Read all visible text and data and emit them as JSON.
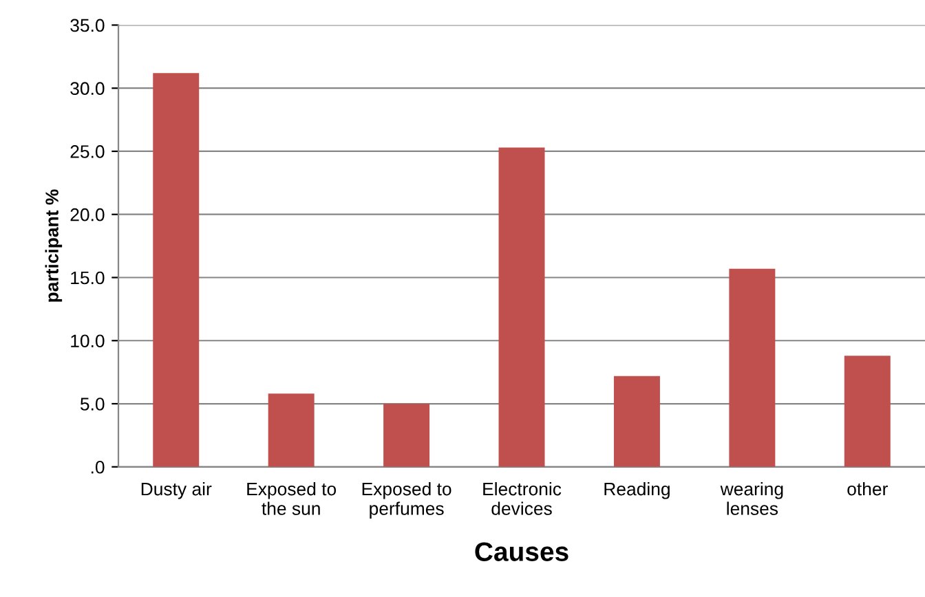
{
  "chart_data": {
    "type": "bar",
    "xlabel": "Causes",
    "ylabel": "participant %",
    "categories": [
      "Dusty air",
      "Exposed to\nthe sun",
      "Exposed to\nperfumes",
      "Electronic\ndevices",
      "Reading",
      "wearing\nlenses",
      "other"
    ],
    "values": [
      31.2,
      5.8,
      5.0,
      25.3,
      7.2,
      15.7,
      8.8
    ],
    "color": "#c0504d",
    "ylim": [
      0,
      35
    ],
    "yticks": [
      {
        "value": 0,
        "label": ".0"
      },
      {
        "value": 5,
        "label": "5.0"
      },
      {
        "value": 10,
        "label": "10.0"
      },
      {
        "value": 15,
        "label": "15.0"
      },
      {
        "value": 20,
        "label": "20.0"
      },
      {
        "value": 25,
        "label": "25.0"
      },
      {
        "value": 30,
        "label": "30.0"
      },
      {
        "value": 35,
        "label": "35.0"
      }
    ],
    "grid": "y"
  }
}
